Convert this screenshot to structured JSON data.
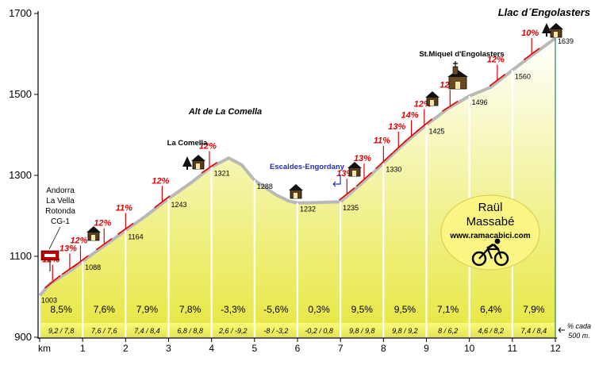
{
  "chart_data": {
    "type": "area",
    "title": "Llac d´Engolasters",
    "xlabel": "km",
    "x_range": [
      0,
      12
    ],
    "y_range": [
      900,
      1700
    ],
    "x_ticks": [
      "0",
      "1",
      "2",
      "3",
      "4",
      "5",
      "6",
      "7",
      "8",
      "9",
      "10",
      "11",
      "12"
    ],
    "y_ticks": [
      "900",
      "1100",
      "1300",
      "1500",
      "1700"
    ],
    "profile": [
      {
        "km": 0,
        "alt": 1003
      },
      {
        "km": 0.25,
        "alt": 1033
      },
      {
        "km": 0.5,
        "alt": 1050
      },
      {
        "km": 0.75,
        "alt": 1067
      },
      {
        "km": 1,
        "alt": 1088
      },
      {
        "km": 1.5,
        "alt": 1126
      },
      {
        "km": 2,
        "alt": 1164
      },
      {
        "km": 2.5,
        "alt": 1202
      },
      {
        "km": 3,
        "alt": 1243
      },
      {
        "km": 3.5,
        "alt": 1280
      },
      {
        "km": 4,
        "alt": 1321
      },
      {
        "km": 4.4,
        "alt": 1343
      },
      {
        "km": 4.7,
        "alt": 1326
      },
      {
        "km": 5,
        "alt": 1288
      },
      {
        "km": 5.5,
        "alt": 1252
      },
      {
        "km": 5.8,
        "alt": 1236
      },
      {
        "km": 6,
        "alt": 1232
      },
      {
        "km": 6.5,
        "alt": 1233
      },
      {
        "km": 7,
        "alt": 1235
      },
      {
        "km": 7.5,
        "alt": 1281
      },
      {
        "km": 8,
        "alt": 1330
      },
      {
        "km": 8.5,
        "alt": 1380
      },
      {
        "km": 9,
        "alt": 1425
      },
      {
        "km": 9.5,
        "alt": 1465
      },
      {
        "km": 10,
        "alt": 1496
      },
      {
        "km": 10.5,
        "alt": 1518
      },
      {
        "km": 11,
        "alt": 1560
      },
      {
        "km": 11.5,
        "alt": 1600
      },
      {
        "km": 12,
        "alt": 1639
      }
    ],
    "km_altitudes": [
      {
        "km": 0,
        "label": "1003"
      },
      {
        "km": 1,
        "label": "1088"
      },
      {
        "km": 2,
        "label": "1164"
      },
      {
        "km": 3,
        "label": "1243"
      },
      {
        "km": 4,
        "label": "1321"
      },
      {
        "km": 5,
        "label": "1288"
      },
      {
        "km": 6,
        "label": "1232"
      },
      {
        "km": 7,
        "label": "1235"
      },
      {
        "km": 8,
        "label": "1330"
      },
      {
        "km": 9,
        "label": "1425"
      },
      {
        "km": 10,
        "label": "1496"
      },
      {
        "km": 11,
        "label": "1560"
      },
      {
        "km": 12,
        "label": "1639"
      }
    ],
    "km_gradients": [
      "8,5%",
      "7,6%",
      "7,9%",
      "7,8%",
      "-3,3%",
      "-5,6%",
      "0,3%",
      "9,5%",
      "9,5%",
      "7,1%",
      "6,4%",
      "7,9%"
    ],
    "half_km_gradients": [
      "9,2 / 7,8",
      "7,6 / 7,6",
      "7,4 / 8,4",
      "6,8 / 8,8",
      "2,6 / -9,2",
      "-8 / -3,2",
      "-0,2 / 0,8",
      "9,8 / 9,8",
      "9,8 / 9,2",
      "8 / 6,2",
      "4,6 / 8,2",
      "7,4 / 8,4"
    ],
    "half_km_note": [
      "% cada",
      "500 m."
    ],
    "steep_markers": [
      {
        "km": 0.3,
        "label": "12%"
      },
      {
        "km": 0.7,
        "label": "13%"
      },
      {
        "km": 0.95,
        "label": "12%"
      },
      {
        "km": 1.5,
        "label": "12%"
      },
      {
        "km": 2.0,
        "label": "11%"
      },
      {
        "km": 2.85,
        "label": "12%"
      },
      {
        "km": 3.95,
        "label": "12%"
      },
      {
        "km": 7.15,
        "label": "13%"
      },
      {
        "km": 7.55,
        "label": "13%"
      },
      {
        "km": 8.0,
        "label": "11%"
      },
      {
        "km": 8.35,
        "label": "13%"
      },
      {
        "km": 8.65,
        "label": "14%"
      },
      {
        "km": 8.95,
        "label": "12%"
      },
      {
        "km": 9.55,
        "label": "12%"
      },
      {
        "km": 10.65,
        "label": "12%"
      },
      {
        "km": 11.45,
        "label": "10%"
      }
    ],
    "places": [
      {
        "id": "andorra",
        "lines": [
          "Andorra",
          "La Vella",
          "Rotonda",
          "CG-1"
        ]
      },
      {
        "id": "la-comella",
        "lines": [
          "La Comella"
        ]
      },
      {
        "id": "alt-comella",
        "lines": [
          "Alt de La Comella"
        ]
      },
      {
        "id": "escaldes",
        "lines": [
          "Escaldes-Engordany"
        ]
      },
      {
        "id": "st-miquel",
        "lines": [
          "St.Miquel d'Engolasters"
        ]
      }
    ],
    "credit": {
      "line1": "Raül",
      "line2": "Massabé",
      "line3": "www.ramacabici.com"
    },
    "colors": {
      "fill_top": "#ffffff",
      "fill_bottom": "#e8e84a",
      "outline": "#b8b8b8",
      "steep": "#e00000",
      "band": "#fbfb7a",
      "badge": "#fbf584",
      "blue": "#1f2fc0",
      "km12_line": "#1f8a5a"
    }
  }
}
